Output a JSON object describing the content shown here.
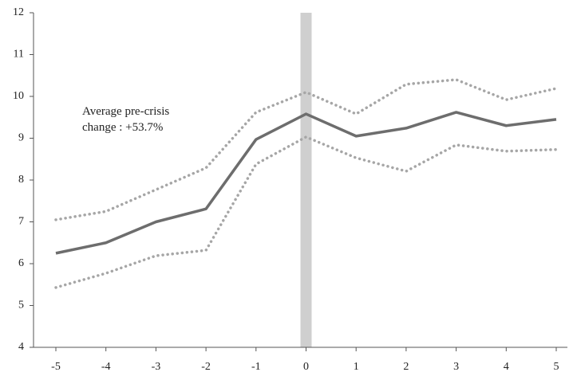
{
  "chart_data": {
    "type": "line",
    "annotation": "Average pre-crisis change : +53.7%",
    "x": [
      -5,
      -4,
      -3,
      -2,
      -1,
      0,
      1,
      2,
      3,
      4,
      5
    ],
    "series": [
      {
        "color": "#6d6d6d",
        "style": "solid",
        "values": [
          6.25,
          6.5,
          7.0,
          7.31,
          8.97,
          9.58,
          9.05,
          9.24,
          9.62,
          9.3,
          9.45
        ]
      },
      {
        "color": "#a6a6a6",
        "style": "dotted",
        "values": [
          7.05,
          7.25,
          7.77,
          8.29,
          9.62,
          10.1,
          9.58,
          10.29,
          10.4,
          9.92,
          10.19
        ]
      },
      {
        "color": "#a6a6a6",
        "style": "dotted",
        "values": [
          5.43,
          5.77,
          6.19,
          6.32,
          8.38,
          9.03,
          8.53,
          8.21,
          8.84,
          8.69,
          8.73
        ]
      }
    ],
    "highlight_x": 0,
    "xlim": [
      -5,
      5
    ],
    "xticks": [
      -5,
      -4,
      -3,
      -2,
      -1,
      0,
      1,
      2,
      3,
      4,
      5
    ],
    "ylim": [
      4,
      12
    ],
    "yticks": [
      4,
      5,
      6,
      7,
      8,
      9,
      10,
      11,
      12
    ],
    "grid": false
  }
}
